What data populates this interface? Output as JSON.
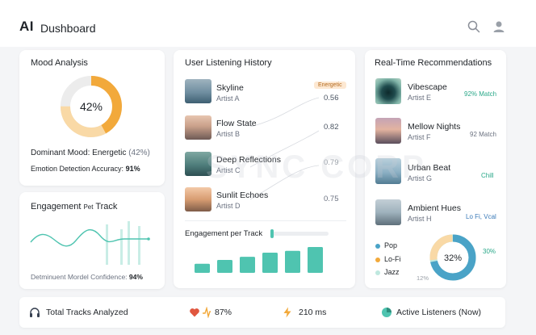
{
  "header": {
    "logo": "AI",
    "title": "Dushboard",
    "search_icon": "search-icon",
    "user_icon": "user-icon"
  },
  "mood": {
    "title": "Mood Analysis",
    "percent_label": "42%",
    "percent_value": 0.42,
    "dominant_label": "Dominant Mood:",
    "dominant_value": "Energetic",
    "dominant_pct": "(42%)",
    "accuracy_label": "Emotion Detection Accuracy:",
    "accuracy_value": "91%",
    "colors": {
      "primary": "#f2a93b",
      "secondary": "#f9d9a6",
      "track": "#ececec"
    }
  },
  "engagement": {
    "title": "Engagement",
    "title_suffix": "Pet",
    "title_tail": "Track",
    "confidence_label": "Detminuent Mordel Confidence:",
    "confidence_value": "94%",
    "color": "#4fc4b0"
  },
  "history": {
    "title": "User Listening History",
    "badge": "Energetic",
    "tracks": [
      {
        "name": "Skyline",
        "artist": "Artist A",
        "score": "0.56"
      },
      {
        "name": "Flow State",
        "artist": "Artist B",
        "score": "0.82"
      },
      {
        "name": "Deep Reflections",
        "artist": "Artist C",
        "score": "0.79"
      },
      {
        "name": "Sunlit Echoes",
        "artist": "Artist D",
        "score": "0.75"
      }
    ],
    "engagement_label": "Engagement per Track",
    "bars": [
      0.35,
      0.5,
      0.62,
      0.78,
      0.85,
      1.0
    ],
    "bar_color": "#4fc4b0"
  },
  "recs": {
    "title": "Real-Time Recommendations",
    "items": [
      {
        "name": "Vibescape",
        "artist": "Artist E",
        "tag": "92% Match",
        "tag_color": "#2aa889"
      },
      {
        "name": "Mellow Nights",
        "artist": "Artist F",
        "tag": "92 Match",
        "tag_color": "#6b7280"
      },
      {
        "name": "Urban Beat",
        "artist": "Artist G",
        "tag": "Chill",
        "tag_color": "#2aa889"
      },
      {
        "name": "Ambient Hues",
        "artist": "Artist H",
        "tag": "Lo Fi, Vcal",
        "tag_color": "#3a7ab8"
      }
    ],
    "legend": [
      {
        "label": "Pop",
        "color": "#4aa3c7"
      },
      {
        "label": "Lo-Fi",
        "color": "#f2a93b"
      },
      {
        "label": "Jazz",
        "color": "#bfe8df"
      }
    ],
    "donut_label": "32%",
    "donut_right": "30%",
    "donut_left": "12%"
  },
  "footer": {
    "tracks_label": "Total Tracks Analyzed",
    "heart_value": "87%",
    "latency_value": "210 ms",
    "listeners_label": "Active Listeners (Now)"
  },
  "watermark": "SYNC CORP"
}
